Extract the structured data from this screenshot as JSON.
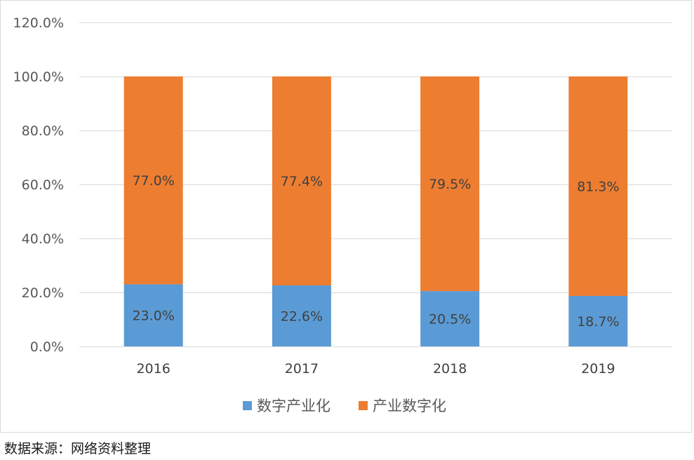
{
  "chart_data": {
    "type": "bar",
    "stacked": true,
    "categories": [
      "2016",
      "2017",
      "2018",
      "2019"
    ],
    "series": [
      {
        "name": "数字产业化",
        "values": [
          23.0,
          22.6,
          20.5,
          18.7
        ],
        "labels": [
          "23.0%",
          "22.6%",
          "20.5%",
          "18.7%"
        ],
        "color": "#5b9bd5"
      },
      {
        "name": "产业数字化",
        "values": [
          77.0,
          77.4,
          79.5,
          81.3
        ],
        "labels": [
          "77.0%",
          "77.4%",
          "79.5%",
          "81.3%"
        ],
        "color": "#ed7d31"
      }
    ],
    "ylim": [
      0,
      120
    ],
    "yticks": [
      0,
      20,
      40,
      60,
      80,
      100,
      120
    ],
    "ytick_labels": [
      "0.0%",
      "20.0%",
      "40.0%",
      "60.0%",
      "80.0%",
      "100.0%",
      "120.0%"
    ],
    "grid": true,
    "legend_position": "bottom",
    "title": "",
    "xlabel": "",
    "ylabel": ""
  },
  "source_note": "数据来源：网络资料整理"
}
